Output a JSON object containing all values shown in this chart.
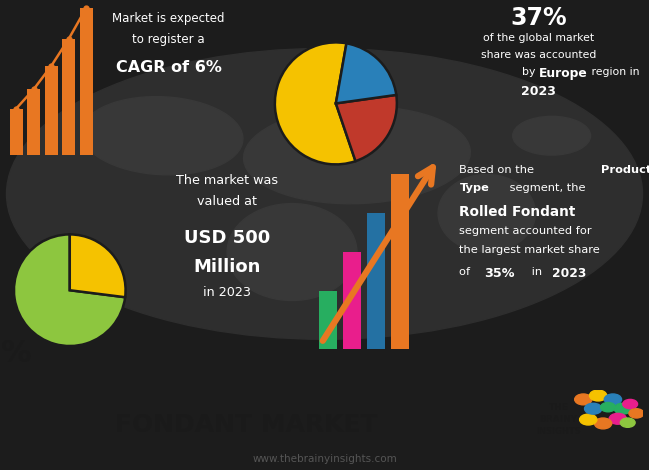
{
  "bg_color": "#1c1c1c",
  "bottom_bg_color": "#e8e8e8",
  "title": "FONDANT MARKET",
  "website": "www.thebrainyinsights.com",
  "top_left_line1": "Market is expected",
  "top_left_line2": "to register a",
  "top_left_bold": "CAGR of 6%",
  "top_right_pct": "37%",
  "top_right_line1": "of the global market",
  "top_right_line2": "share was accounted",
  "top_right_line3": "by ",
  "top_right_europe": "Europe",
  "top_right_line4": " region in",
  "top_right_year": "2023",
  "bottom_left_line1": "The market was",
  "bottom_left_line2": "valued at",
  "bottom_left_bold1": "USD 500",
  "bottom_left_bold2": "Million",
  "bottom_left_line3": "in 2023",
  "bottom_right_pre": "Based on the ",
  "bottom_right_bold1": "Product",
  "bottom_right_bold2": "Type",
  "bottom_right_mid": " segment, the",
  "bottom_right_bold3": "Rolled Fondant",
  "bottom_right_line1": "segment accounted for",
  "bottom_right_line2": "the largest market share",
  "bottom_right_of": "of ",
  "bottom_right_pct": "35%",
  "bottom_right_in": " in ",
  "bottom_right_year": "2023",
  "pie1_colors": [
    "#f5c200",
    "#c0392b",
    "#2980b9"
  ],
  "pie1_sizes": [
    58,
    22,
    20
  ],
  "pie2_colors": [
    "#8dc63f",
    "#f5c200"
  ],
  "pie2_sizes": [
    73,
    27
  ],
  "orange": "#e87722",
  "green": "#8dc63f",
  "bar_bottom_colors": [
    "#27ae60",
    "#e91e8c",
    "#2471a3",
    "#e87722"
  ],
  "white": "#ffffff"
}
